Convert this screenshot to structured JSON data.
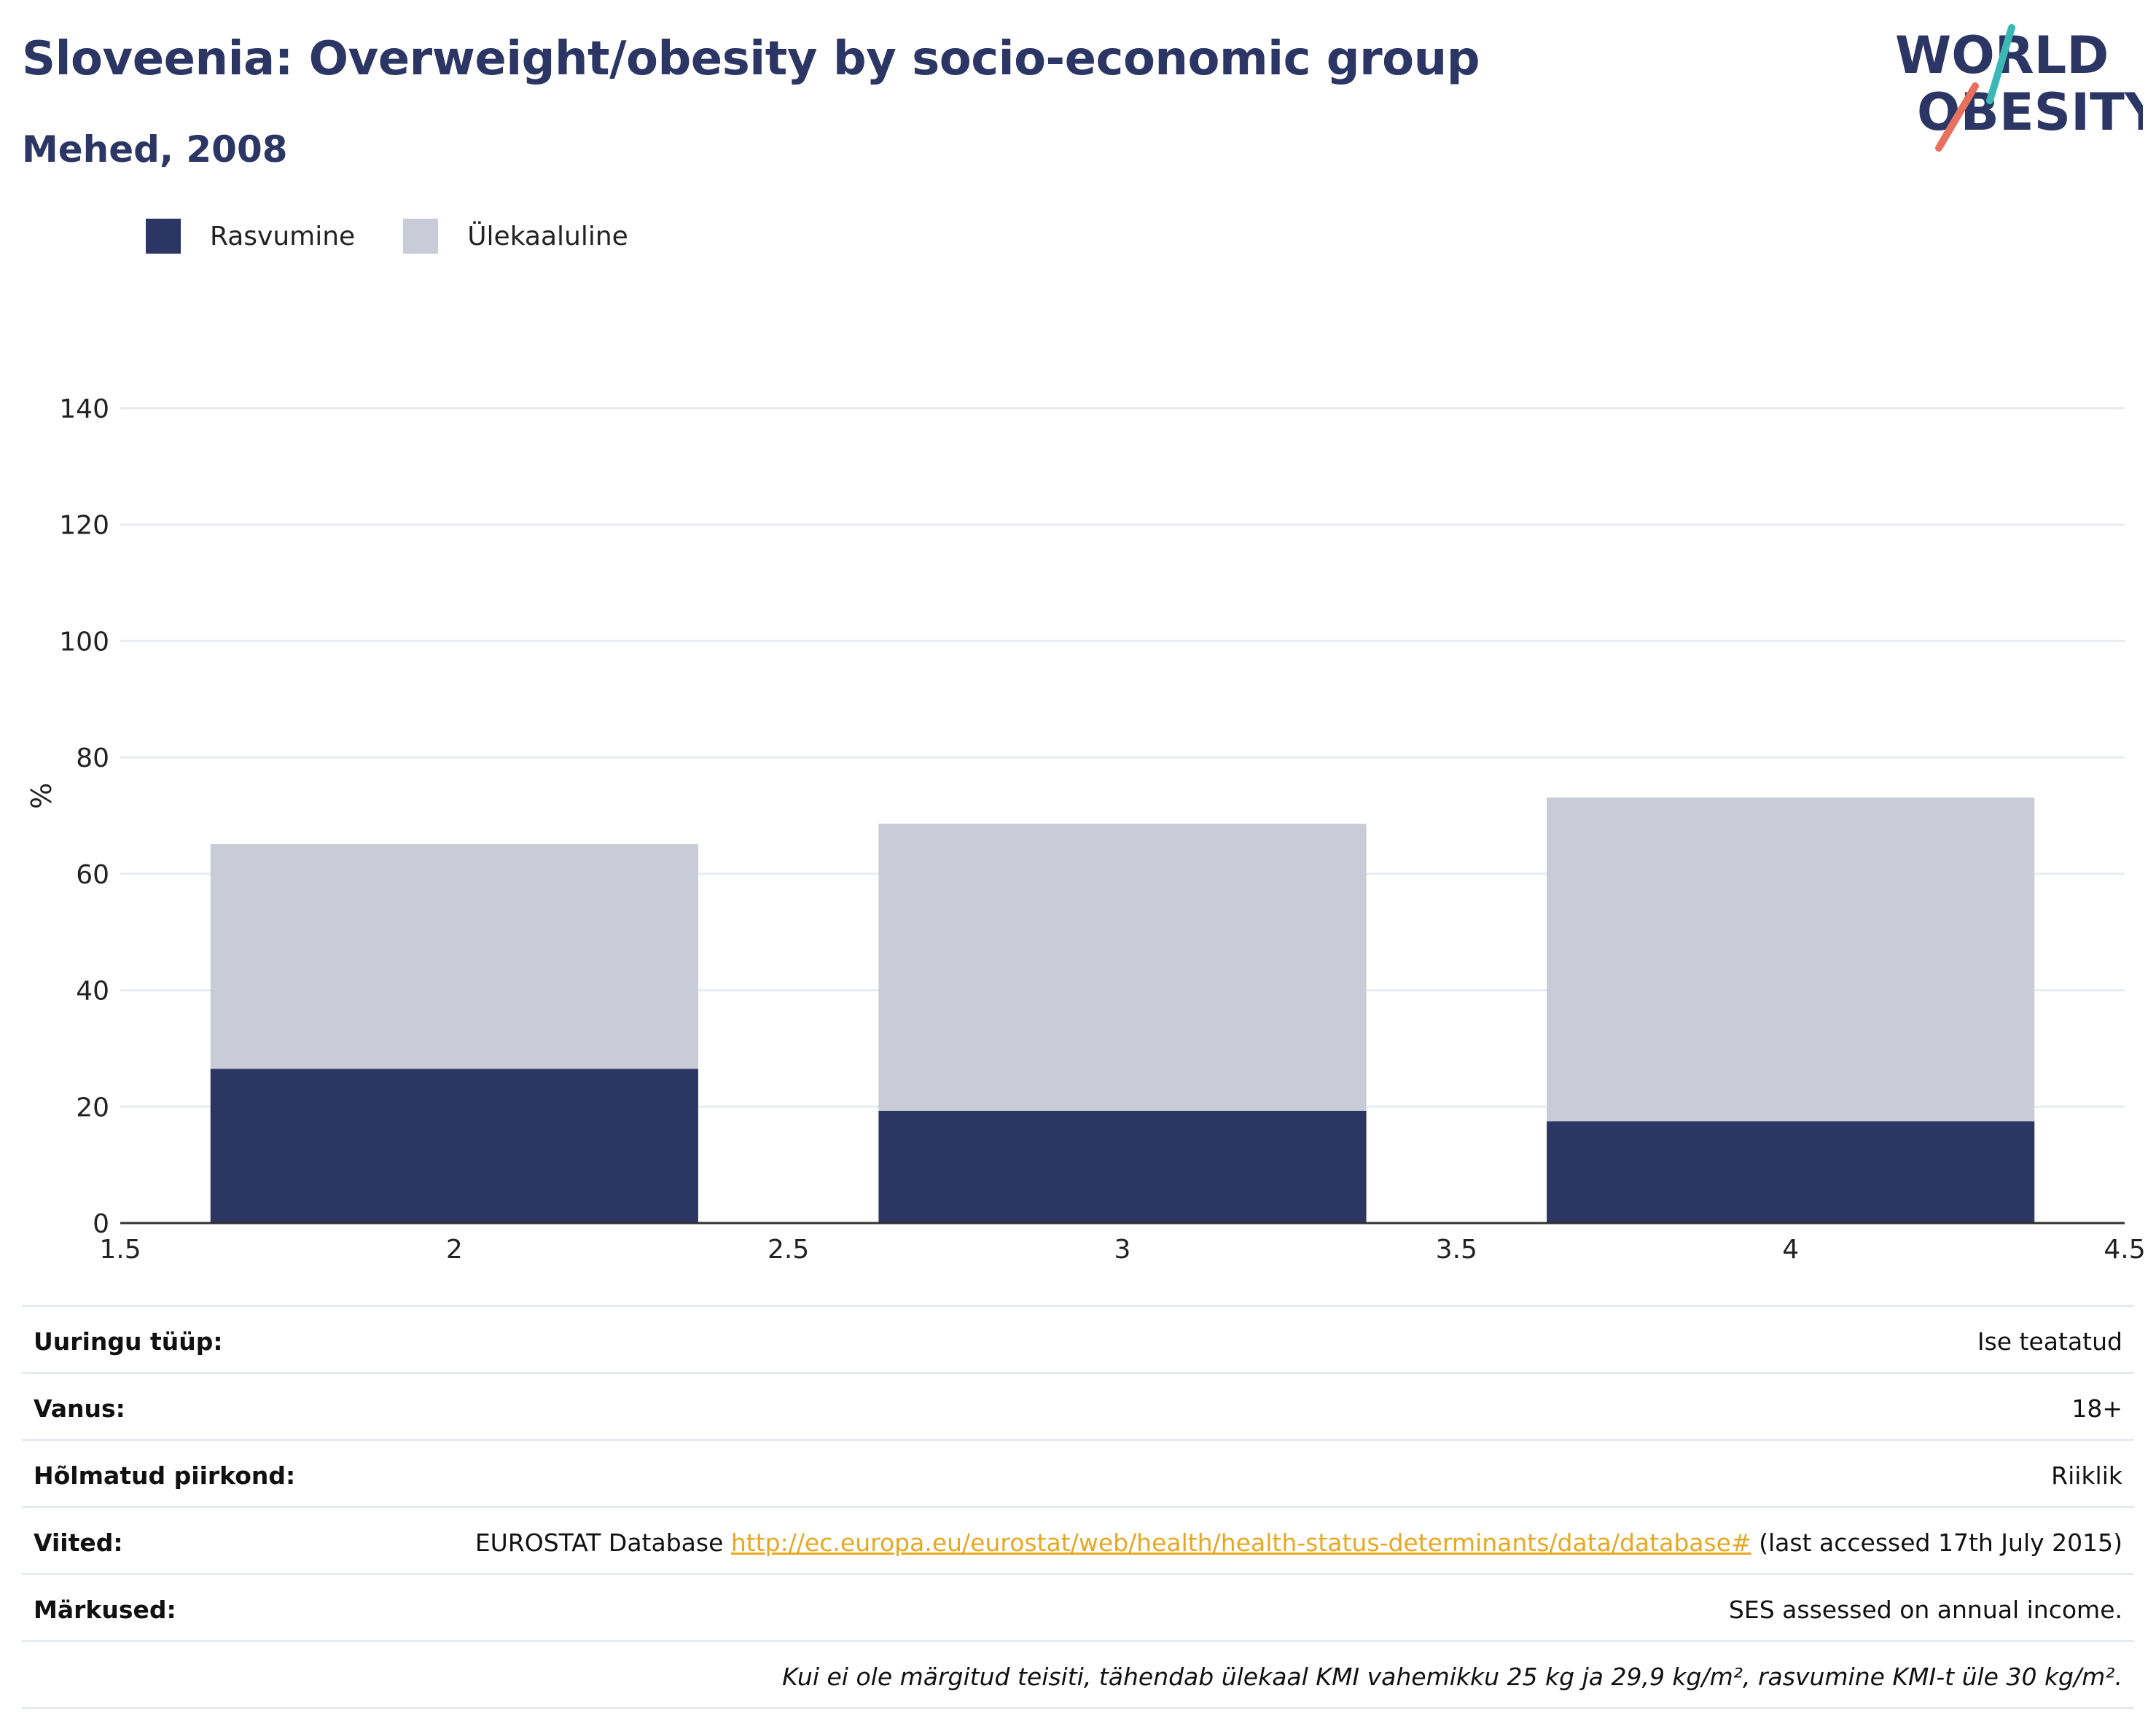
{
  "header": {
    "title": "Sloveenia: Overweight/obesity by socio-economic group",
    "subtitle": "Mehed, 2008"
  },
  "logo": {
    "line1": "WORLD",
    "line2": "OBESITY"
  },
  "colors": {
    "obesity": "#2b3664",
    "overweight": "#c9cbd6",
    "title": "#2b3664",
    "grid": "#e8ebf0",
    "link": "#e6a820",
    "logo_teal": "#3bb8b5",
    "logo_coral": "#e8705f"
  },
  "legend": [
    {
      "label": "Rasvumine",
      "color": "#2b3664"
    },
    {
      "label": "Ülekaaluline",
      "color": "#c9cbd6"
    }
  ],
  "chart_data": {
    "type": "bar",
    "stacked": true,
    "ylabel": "%",
    "xlim": [
      1.5,
      4.5
    ],
    "ylim": [
      0,
      140
    ],
    "xticks": [
      "1.5",
      "2",
      "2.5",
      "3",
      "3.5",
      "4",
      "4.5"
    ],
    "yticks": [
      "0",
      "20",
      "40",
      "60",
      "80",
      "100",
      "120",
      "140"
    ],
    "x": [
      2,
      3,
      4
    ],
    "series": [
      {
        "name": "Rasvumine",
        "values": [
          26.5,
          19.3,
          17.5
        ]
      },
      {
        "name": "Ülekaaluline",
        "values": [
          38.6,
          49.3,
          55.6
        ]
      }
    ],
    "grid": true,
    "legend_position": "top-left"
  },
  "info": {
    "survey_type_label": "Uuringu tüüp:",
    "survey_type_value": "Ise teatatud",
    "age_label": "Vanus:",
    "age_value": "18+",
    "area_label": "Hõlmatud piirkond:",
    "area_value": "Riiklik",
    "refs_label": "Viited:",
    "refs_prefix": "EUROSTAT Database",
    "refs_link": "http://ec.europa.eu/eurostat/web/health/health-status-determinants/data/database#",
    "refs_suffix": "(last accessed 17th July 2015)",
    "notes_label": "Märkused:",
    "notes_value": "SES assessed on annual income.",
    "definition": "Kui ei ole märgitud teisiti, tähendab ülekaal KMI vahemikku 25 kg ja 29,9 kg/m², rasvumine KMI-t üle 30 kg/m²."
  }
}
